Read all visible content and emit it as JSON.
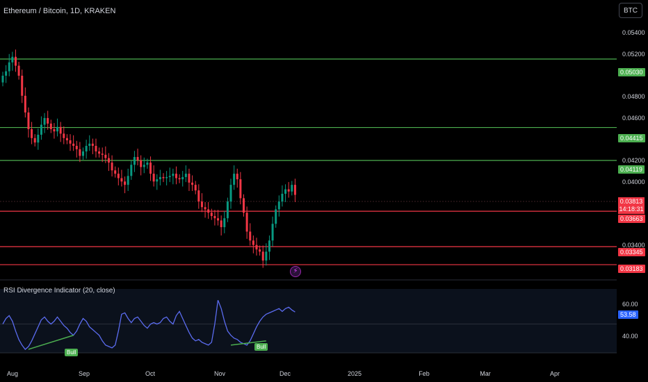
{
  "header": {
    "title": "Ethereum / Bitcoin, 1D, KRAKEN",
    "currency_button": "BTC"
  },
  "price_axis": {
    "ticks": [
      "0.05400",
      "0.05200",
      "0.04800",
      "0.04600",
      "0.04200",
      "0.04000",
      "0.03400"
    ]
  },
  "levels": [
    {
      "label": "0.05030",
      "value": 0.0503,
      "color": "#4caf50"
    },
    {
      "label": "0.04415",
      "value": 0.04415,
      "color": "#4caf50"
    },
    {
      "label": "0.04119",
      "value": 0.04119,
      "color": "#4caf50"
    },
    {
      "label": "0.03663",
      "value": 0.03663,
      "color": "#f23645"
    },
    {
      "label": "0.03345",
      "value": 0.03345,
      "color": "#f23645"
    },
    {
      "label": "0.03183",
      "value": 0.03183,
      "color": "#f23645"
    }
  ],
  "current_price": {
    "label": "0.03813",
    "countdown": "14:18:31",
    "value": 0.03813
  },
  "rsi_panel": {
    "title": "RSI Divergence Indicator (20, close)",
    "ticks": [
      "60.00",
      "40.00"
    ],
    "current_label": "53.58",
    "signals": [
      "Bull",
      "Bull"
    ]
  },
  "time_axis": {
    "labels": [
      "Aug",
      "Sep",
      "Oct",
      "Nov",
      "Dec",
      "2025",
      "Feb",
      "Mar",
      "Apr"
    ]
  },
  "chart_data": {
    "type": "candlestick",
    "title": "Ethereum / Bitcoin, 1D, KRAKEN",
    "price_range": [
      0.0304,
      0.0556
    ],
    "rsi_range": [
      25,
      70
    ],
    "close_series": [
      0.0488,
      0.0492,
      0.05,
      0.0505,
      0.0497,
      0.0488,
      0.047,
      0.0455,
      0.044,
      0.0432,
      0.0428,
      0.0435,
      0.0444,
      0.045,
      0.0445,
      0.044,
      0.0438,
      0.0442,
      0.0436,
      0.0432,
      0.043,
      0.0427,
      0.0425,
      0.0422,
      0.0416,
      0.042,
      0.0425,
      0.0427,
      0.0425,
      0.042,
      0.0418,
      0.0417,
      0.0414,
      0.041,
      0.0403,
      0.04,
      0.0396,
      0.0393,
      0.039,
      0.0398,
      0.0408,
      0.0415,
      0.0412,
      0.0406,
      0.0408,
      0.041,
      0.04,
      0.0393,
      0.0395,
      0.0397,
      0.0396,
      0.0397,
      0.0398,
      0.04,
      0.0396,
      0.0395,
      0.0397,
      0.04,
      0.0392,
      0.039,
      0.0385,
      0.0375,
      0.037,
      0.0368,
      0.0365,
      0.0362,
      0.036,
      0.0358,
      0.0352,
      0.036,
      0.0375,
      0.039,
      0.04,
      0.0395,
      0.0378,
      0.0365,
      0.0348,
      0.034,
      0.0336,
      0.0332,
      0.033,
      0.0322,
      0.033,
      0.034,
      0.0355,
      0.0368,
      0.0375,
      0.0382,
      0.0386,
      0.0384,
      0.039,
      0.0381
    ],
    "rsi_series": [
      45,
      49,
      51,
      47,
      40,
      34,
      30,
      27,
      29,
      33,
      38,
      43,
      48,
      50,
      47,
      45,
      47,
      50,
      47,
      44,
      42,
      39,
      37,
      40,
      45,
      49,
      47,
      43,
      41,
      39,
      37,
      33,
      30,
      29,
      28,
      30,
      40,
      52,
      53,
      49,
      46,
      49,
      50,
      47,
      44,
      42,
      45,
      46,
      45,
      46,
      49,
      50,
      47,
      45,
      51,
      54,
      49,
      44,
      39,
      35,
      33,
      34,
      32,
      31,
      30,
      32,
      45,
      62,
      56,
      47,
      40,
      37,
      35,
      34,
      32,
      31,
      30,
      33,
      38,
      43,
      47,
      50,
      52,
      53,
      54,
      55,
      56,
      54,
      56,
      57,
      55,
      53.58
    ],
    "bull_divergence_labels": [
      "Bull",
      "Bull"
    ]
  }
}
